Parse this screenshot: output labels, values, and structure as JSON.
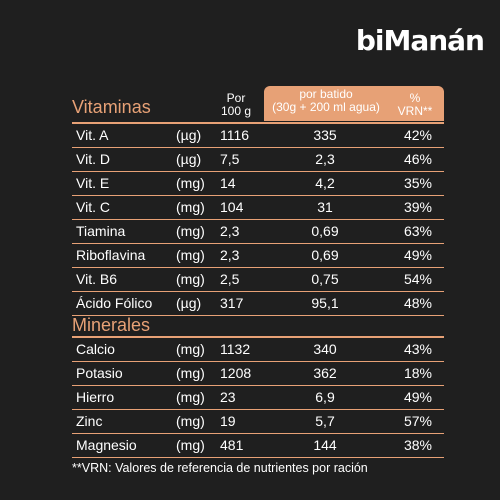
{
  "brand": "biManán",
  "header": {
    "per100": [
      "Por",
      "100 g"
    ],
    "per_shake": [
      "por batido",
      "(30g + 200 ml agua)"
    ],
    "vrn": [
      "%",
      "VRN**"
    ]
  },
  "vitamins": {
    "title": "Vitaminas",
    "rows": [
      {
        "name": "Vit. A",
        "unit": "(µg)",
        "per100": "1116",
        "shake": "335",
        "vrn": "42%"
      },
      {
        "name": "Vit. D",
        "unit": "(µg)",
        "per100": "7,5",
        "shake": "2,3",
        "vrn": "46%"
      },
      {
        "name": "Vit. E",
        "unit": "(mg)",
        "per100": "14",
        "shake": "4,2",
        "vrn": "35%"
      },
      {
        "name": "Vit. C",
        "unit": "(mg)",
        "per100": "104",
        "shake": "31",
        "vrn": "39%"
      },
      {
        "name": "Tiamina",
        "unit": "(mg)",
        "per100": "2,3",
        "shake": "0,69",
        "vrn": "63%"
      },
      {
        "name": "Riboflavina",
        "unit": "(mg)",
        "per100": "2,3",
        "shake": "0,69",
        "vrn": "49%"
      },
      {
        "name": "Vit. B6",
        "unit": "(mg)",
        "per100": "2,5",
        "shake": "0,75",
        "vrn": "54%"
      },
      {
        "name": "Ácido Fólico",
        "unit": "(µg)",
        "per100": "317",
        "shake": "95,1",
        "vrn": "48%"
      }
    ]
  },
  "minerals": {
    "title": "Minerales",
    "rows": [
      {
        "name": "Calcio",
        "unit": "(mg)",
        "per100": "1132",
        "shake": "340",
        "vrn": "43%"
      },
      {
        "name": "Potasio",
        "unit": "(mg)",
        "per100": "1208",
        "shake": "362",
        "vrn": "18%"
      },
      {
        "name": "Hierro",
        "unit": "(mg)",
        "per100": "23",
        "shake": "6,9",
        "vrn": "49%"
      },
      {
        "name": "Zinc",
        "unit": "(mg)",
        "per100": "19",
        "shake": "5,7",
        "vrn": "57%"
      },
      {
        "name": "Magnesio",
        "unit": "(mg)",
        "per100": "481",
        "shake": "144",
        "vrn": "38%"
      }
    ]
  },
  "footnote": "**VRN: Valores de referencia de nutrientes por ración",
  "colors": {
    "background": "#1f1f1f",
    "accent": "#e7a176",
    "text": "#ffffff"
  }
}
